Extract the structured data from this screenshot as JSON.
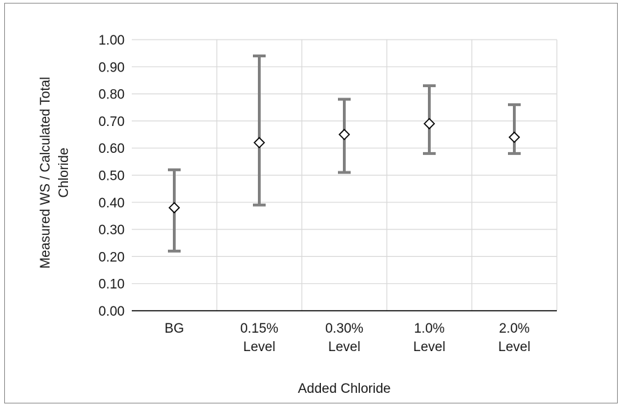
{
  "chart_data": {
    "type": "scatter",
    "xlabel": "Added Chloride",
    "ylabel": "Measured WS / Calculated Total Chloride",
    "ylabel_lines": [
      "Measured WS / Calculated Total",
      "Chloride"
    ],
    "categories": [
      {
        "label": "BG",
        "lines": [
          "BG"
        ]
      },
      {
        "label": "0.15% Level",
        "lines": [
          "0.15%",
          "Level"
        ]
      },
      {
        "label": "0.30% Level",
        "lines": [
          "0.30%",
          "Level"
        ]
      },
      {
        "label": "1.0% Level",
        "lines": [
          "1.0%",
          "Level"
        ]
      },
      {
        "label": "2.0% Level",
        "lines": [
          "2.0%",
          "Level"
        ]
      }
    ],
    "values": [
      0.38,
      0.62,
      0.65,
      0.69,
      0.64
    ],
    "error_low": [
      0.22,
      0.39,
      0.51,
      0.58,
      0.58
    ],
    "error_high": [
      0.52,
      0.94,
      0.78,
      0.83,
      0.76
    ],
    "ylim": [
      0,
      1.0
    ],
    "yticks": [
      "0.00",
      "0.10",
      "0.20",
      "0.30",
      "0.40",
      "0.50",
      "0.60",
      "0.70",
      "0.80",
      "0.90",
      "1.00"
    ],
    "grid": true,
    "marker": "diamond",
    "colors": {
      "errorbar": "#808080",
      "grid": "#d9d9d9",
      "axis": "#000000",
      "marker": "#000000"
    }
  }
}
